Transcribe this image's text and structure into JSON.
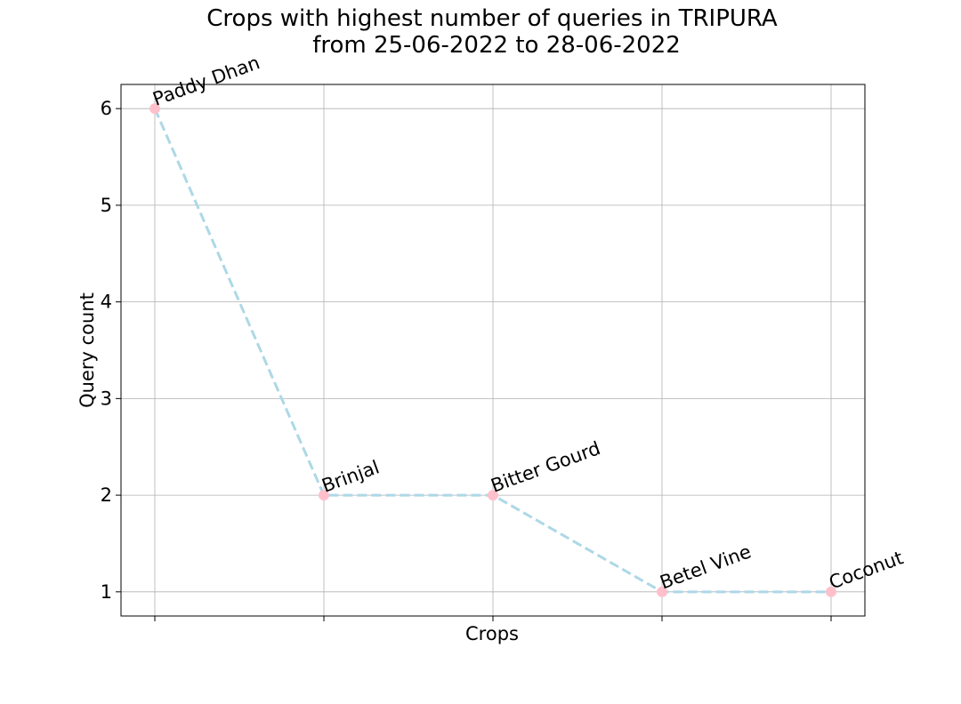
{
  "chart_data": {
    "type": "line",
    "title_line1": "Crops with highest number of queries in TRIPURA",
    "title_line2": "from 25-06-2022 to 28-06-2022",
    "xlabel": "Crops",
    "ylabel": "Query count",
    "categories": [
      "Paddy Dhan",
      "Brinjal",
      "Bitter Gourd",
      "Betel Vine",
      "Coconut"
    ],
    "values": [
      6,
      2,
      2,
      1,
      1
    ],
    "y_ticks": [
      "1",
      "2",
      "3",
      "4",
      "5",
      "6"
    ],
    "ylim": [
      0.75,
      6.25
    ],
    "grid": true,
    "line_color": "#add8e6",
    "line_style": "dashed",
    "marker_color": "#ffc0cb"
  }
}
